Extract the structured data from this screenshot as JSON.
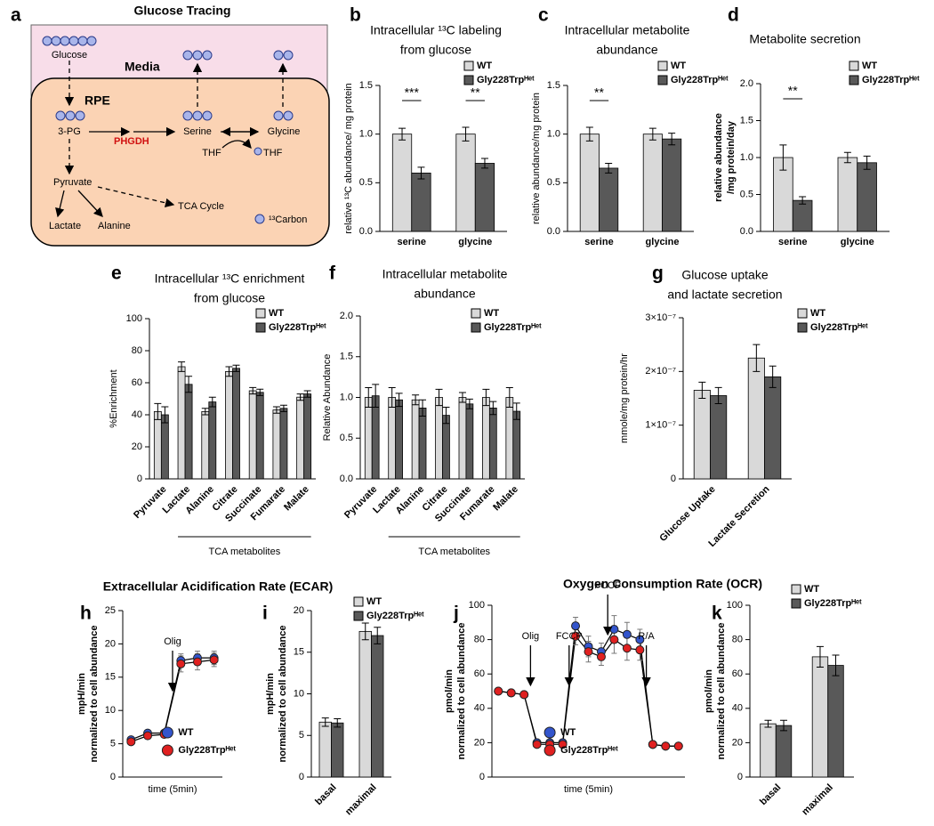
{
  "headings": [
    "Extracellular Acidification Rate (ECAR)",
    "Oxygen Consumption Rate (OCR)"
  ],
  "diagram": {
    "panel": "a",
    "title": "Glucose Tracing",
    "labels": {
      "glucose": "Glucose",
      "media": "Media",
      "rpe": "RPE",
      "pg3": "3-PG",
      "phgdh": "PHGDH",
      "serine": "Serine",
      "glycine": "Glycine",
      "thf": "THF",
      "thf13": "THF",
      "pyruvate": "Pyruvate",
      "tca": "TCA Cycle",
      "lactate": "Lactate",
      "alanine": "Alanine",
      "carbon": "¹³Carbon"
    }
  },
  "chart_data": [
    {
      "type": "bar",
      "panel": "b",
      "title": [
        "Intracellular ¹³C labeling",
        "from glucose"
      ],
      "ylabel": [
        "relative ¹³C abundance/ mg protein"
      ],
      "categories": [
        "serine",
        "glycine"
      ],
      "series": [
        {
          "name": "WT",
          "color": "#d9d9d9",
          "values": [
            1.0,
            1.0
          ],
          "errors": [
            0.06,
            0.07
          ]
        },
        {
          "name": "Gly228Trpᴴᵉᵗ",
          "color": "#595959",
          "values": [
            0.6,
            0.7
          ],
          "errors": [
            0.06,
            0.05
          ]
        }
      ],
      "ylim": [
        0,
        1.5
      ],
      "yticks": [
        {
          "value": 0,
          "label": "0.0"
        },
        0.5,
        {
          "value": 1,
          "label": "1.0"
        },
        1.5
      ],
      "annotations": [
        {
          "text": "***",
          "category": 0
        },
        {
          "text": "**",
          "category": 1
        }
      ]
    },
    {
      "type": "bar",
      "panel": "c",
      "title": [
        "Intracellular metabolite",
        "abundance"
      ],
      "ylabel": [
        "relative abundance/mg protein"
      ],
      "categories": [
        "serine",
        "glycine"
      ],
      "series": [
        {
          "name": "WT",
          "color": "#d9d9d9",
          "values": [
            1.0,
            1.0
          ],
          "errors": [
            0.07,
            0.06
          ]
        },
        {
          "name": "Gly228Trpᴴᵉᵗ",
          "color": "#595959",
          "values": [
            0.65,
            0.95
          ],
          "errors": [
            0.05,
            0.06
          ]
        }
      ],
      "ylim": [
        0,
        1.5
      ],
      "yticks": [
        {
          "value": 0,
          "label": "0.0"
        },
        0.5,
        {
          "value": 1,
          "label": "1.0"
        },
        1.5
      ],
      "annotations": [
        {
          "text": "**",
          "category": 0
        }
      ]
    },
    {
      "type": "bar",
      "panel": "d",
      "title": [
        "Metabolite secretion"
      ],
      "ylabel": [
        "relative abundance",
        "/mg protein/day"
      ],
      "categories": [
        "serine",
        "glycine"
      ],
      "series": [
        {
          "name": "WT",
          "color": "#d9d9d9",
          "values": [
            1.0,
            1.0
          ],
          "errors": [
            0.17,
            0.07
          ]
        },
        {
          "name": "Gly228Trpᴴᵉᵗ",
          "color": "#595959",
          "values": [
            0.42,
            0.93
          ],
          "errors": [
            0.05,
            0.09
          ]
        }
      ],
      "ylim": [
        0,
        2
      ],
      "yticks": [
        {
          "value": 0,
          "label": "0.0"
        },
        0.5,
        {
          "value": 1,
          "label": "1.0"
        },
        1.5,
        {
          "value": 2,
          "label": "2.0"
        }
      ],
      "annotations": [
        {
          "text": "**",
          "category": 0
        }
      ]
    },
    {
      "type": "bar",
      "panel": "e",
      "title": [
        "Intracellular ¹³C enrichment",
        "from glucose"
      ],
      "ylabel": [
        "%Enrichment"
      ],
      "categories": [
        "Pyruvate",
        "Lactate",
        "Alanine",
        "Citrate",
        "Succinate",
        "Fumarate",
        "Malate"
      ],
      "group_label": "TCA metabolites",
      "series": [
        {
          "name": "WT",
          "color": "#d9d9d9",
          "values": [
            42,
            70,
            42,
            67,
            55,
            43,
            51
          ],
          "errors": [
            5,
            3,
            2,
            3,
            2,
            2,
            2
          ]
        },
        {
          "name": "Gly228Trpᴴᵉᵗ",
          "color": "#595959",
          "values": [
            40,
            59,
            48,
            69,
            54,
            44,
            53
          ],
          "errors": [
            5,
            5,
            3,
            2,
            2,
            2,
            2
          ]
        }
      ],
      "ylim": [
        0,
        100
      ],
      "yticks": [
        0,
        20,
        40,
        60,
        80,
        100
      ]
    },
    {
      "type": "bar",
      "panel": "f",
      "title": [
        "Intracellular metabolite",
        "abundance"
      ],
      "ylabel": [
        "Relative Abundance"
      ],
      "categories": [
        "Pyruvate",
        "Lactate",
        "Alanine",
        "Citrate",
        "Succinate",
        "Fumarate",
        "Malate"
      ],
      "group_label": "TCA metabolites",
      "series": [
        {
          "name": "WT",
          "color": "#d9d9d9",
          "values": [
            1.0,
            1.0,
            0.97,
            1.0,
            1.0,
            1.0,
            1.0
          ],
          "errors": [
            0.12,
            0.12,
            0.06,
            0.1,
            0.06,
            0.1,
            0.12
          ]
        },
        {
          "name": "Gly228Trpᴴᵉᵗ",
          "color": "#595959",
          "values": [
            1.02,
            0.97,
            0.87,
            0.78,
            0.92,
            0.87,
            0.83
          ],
          "errors": [
            0.14,
            0.08,
            0.1,
            0.1,
            0.06,
            0.08,
            0.1
          ]
        }
      ],
      "ylim": [
        0,
        2
      ],
      "yticks": [
        {
          "value": 0,
          "label": "0.0"
        },
        0.5,
        {
          "value": 1,
          "label": "1.0"
        },
        1.5,
        {
          "value": 2,
          "label": "2.0"
        }
      ]
    },
    {
      "type": "bar",
      "panel": "g",
      "title": [
        "Glucose uptake",
        "and lactate secretion"
      ],
      "ylabel": [
        "mmole/mg protein/hr"
      ],
      "categories": [
        "Glucose Uptake",
        "Lactate Secretion"
      ],
      "series": [
        {
          "name": "WT",
          "color": "#d9d9d9",
          "values": [
            1.65e-07,
            2.25e-07
          ],
          "errors": [
            1.5e-08,
            2.5e-08
          ]
        },
        {
          "name": "Gly228Trpᴴᵉᵗ",
          "color": "#595959",
          "values": [
            1.55e-07,
            1.9e-07
          ],
          "errors": [
            1.5e-08,
            2e-08
          ]
        }
      ],
      "ylim": [
        0,
        3e-07
      ],
      "yticks": [
        0,
        {
          "value": 1e-07,
          "label": "1×10⁻⁷"
        },
        {
          "value": 2e-07,
          "label": "2×10⁻⁷"
        },
        {
          "value": 3e-07,
          "label": "3×10⁻⁷"
        }
      ]
    },
    {
      "type": "line",
      "panel": "h",
      "ylabel": [
        "mpH/min",
        "normalized to cell abundance"
      ],
      "xlabel": "time (5min)",
      "x": [
        1,
        2,
        3,
        4,
        5,
        6
      ],
      "xlim": [
        0.5,
        6.5
      ],
      "series": [
        {
          "name": "WT",
          "color": "#3355cc",
          "values": [
            5.6,
            6.6,
            6.6,
            17.5,
            17.9,
            17.9
          ],
          "errors": [
            0.3,
            0.3,
            0.3,
            1.0,
            1.0,
            1.0
          ]
        },
        {
          "name": "Gly228Trpᴴᵉᵗ",
          "color": "#e02020",
          "values": [
            5.3,
            6.2,
            6.4,
            17.0,
            17.3,
            17.6
          ],
          "errors": [
            0.3,
            0.3,
            0.3,
            1.2,
            1.2,
            1.0
          ]
        }
      ],
      "ylim": [
        0,
        25
      ],
      "yticks": [
        0,
        5,
        10,
        15,
        20,
        25
      ],
      "annotations": [
        {
          "text": "Olig",
          "x": 3.5
        }
      ]
    },
    {
      "type": "bar",
      "panel": "i",
      "ylabel": [
        "mpH/min",
        "normalized to cell abundance"
      ],
      "categories": [
        "basal",
        "maximal"
      ],
      "series": [
        {
          "name": "WT",
          "color": "#d9d9d9",
          "values": [
            6.6,
            17.5
          ],
          "errors": [
            0.5,
            1.0
          ]
        },
        {
          "name": "Gly228Trpᴴᵉᵗ",
          "color": "#595959",
          "values": [
            6.5,
            17.0
          ],
          "errors": [
            0.5,
            1.0
          ]
        }
      ],
      "ylim": [
        0,
        20
      ],
      "yticks": [
        0,
        5,
        10,
        15,
        20
      ]
    },
    {
      "type": "line",
      "panel": "j",
      "ylabel": [
        "pmol/min",
        "normalized to cell abundance"
      ],
      "xlabel": "time (5min)",
      "x": [
        1,
        2,
        3,
        4,
        5,
        6,
        7,
        8,
        9,
        10,
        11,
        12,
        13,
        14,
        15
      ],
      "xlim": [
        0.5,
        15.5
      ],
      "series": [
        {
          "name": "WT",
          "color": "#3355cc",
          "values": [
            50,
            49,
            48,
            20,
            20,
            20,
            88,
            76,
            73,
            86,
            83,
            80,
            19,
            18,
            18
          ],
          "errors": [
            1,
            1,
            1,
            1,
            1,
            1,
            5,
            6,
            5,
            8,
            7,
            6,
            1,
            1,
            1
          ]
        },
        {
          "name": "Gly228Trpᴴᵉᵗ",
          "color": "#e02020",
          "values": [
            50,
            49,
            48,
            19,
            19,
            19,
            82,
            73,
            70,
            80,
            75,
            74,
            19,
            18,
            18
          ],
          "errors": [
            1,
            1,
            1,
            1,
            1,
            1,
            5,
            6,
            5,
            8,
            7,
            6,
            1,
            1,
            1
          ]
        }
      ],
      "ylim": [
        0,
        100
      ],
      "yticks": [
        0,
        20,
        40,
        60,
        80,
        100
      ],
      "annotations": [
        {
          "text": "Olig",
          "x": 3.5
        },
        {
          "text": "FCCP",
          "x": 6.5
        },
        {
          "text": "FCCP",
          "x": 9.5
        },
        {
          "text": "R/A",
          "x": 12.5
        }
      ]
    },
    {
      "type": "bar",
      "panel": "k",
      "ylabel": [
        "pmol/min",
        "normalized to cell abundance"
      ],
      "categories": [
        "basal",
        "maximal"
      ],
      "series": [
        {
          "name": "WT",
          "color": "#d9d9d9",
          "values": [
            31,
            70
          ],
          "errors": [
            2,
            6
          ]
        },
        {
          "name": "Gly228Trpᴴᵉᵗ",
          "color": "#595959",
          "values": [
            30,
            65
          ],
          "errors": [
            3,
            6
          ]
        }
      ],
      "ylim": [
        0,
        100
      ],
      "yticks": [
        0,
        20,
        40,
        60,
        80,
        100
      ]
    }
  ]
}
